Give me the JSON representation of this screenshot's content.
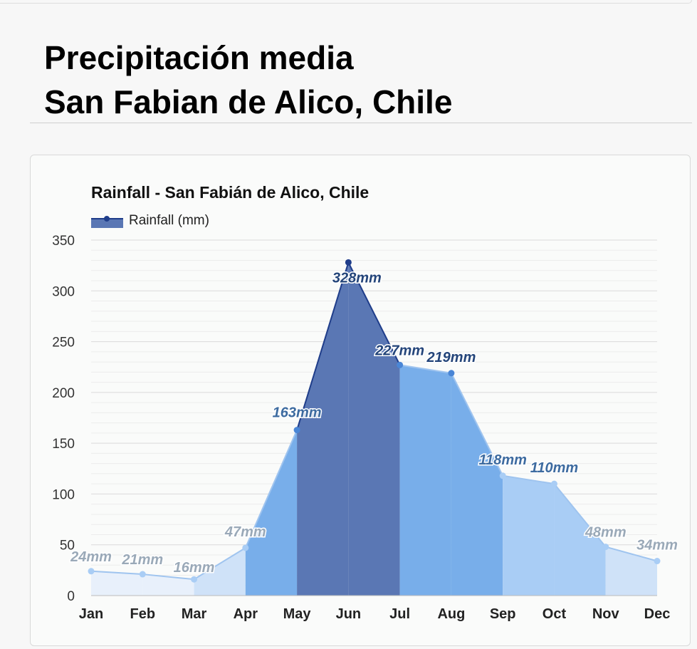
{
  "page": {
    "title_line1": "Precipitación media",
    "title_line2": "San Fabian de Alico, Chile"
  },
  "chart_data": {
    "type": "area",
    "title": "Rainfall - San Fabián de Alico, Chile",
    "legend": "Rainfall (mm)",
    "legend_position": "top-left",
    "categories": [
      "Jan",
      "Feb",
      "Mar",
      "Apr",
      "May",
      "Jun",
      "Jul",
      "Aug",
      "Sep",
      "Oct",
      "Nov",
      "Dec"
    ],
    "series": [
      {
        "name": "Rainfall (mm)",
        "values": [
          24,
          21,
          16,
          47,
          163,
          328,
          227,
          219,
          118,
          110,
          48,
          34
        ]
      }
    ],
    "data_labels": [
      "24mm",
      "21mm",
      "16mm",
      "47mm",
      "163mm",
      "328mm",
      "227mm",
      "219mm",
      "118mm",
      "110mm",
      "48mm",
      "34mm"
    ],
    "ylim": [
      0,
      350
    ],
    "yticks": [
      0,
      50,
      100,
      150,
      200,
      250,
      300,
      350
    ],
    "grid": true,
    "colors": {
      "line": "#1f3d8a",
      "dry": "#e8f0fb",
      "light": "#cfe2f8",
      "medium": "#a9cdf5",
      "wet": "#78aeea",
      "wettest": "#5a77b4",
      "label_dark": "#24457a",
      "label_mid": "#3d6ba0",
      "label_light": "#9aa9b8"
    }
  }
}
